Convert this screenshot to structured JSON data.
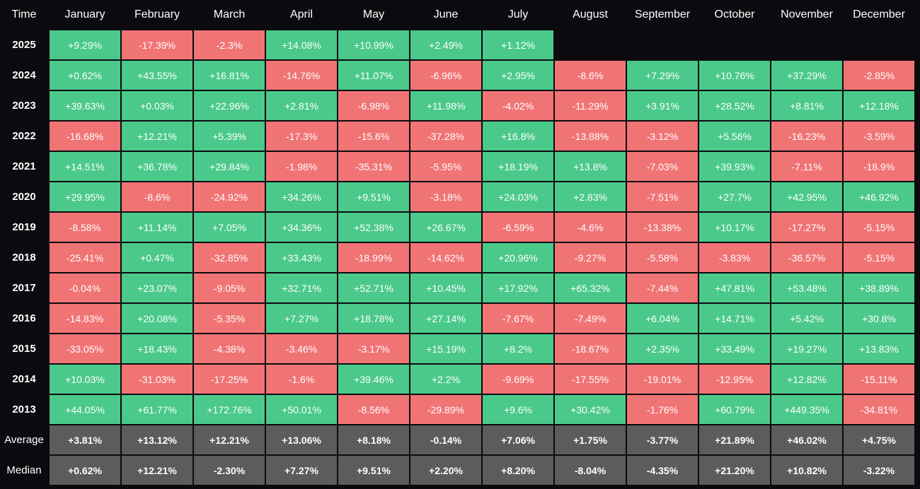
{
  "header": {
    "time_label": "Time",
    "months": [
      "January",
      "February",
      "March",
      "April",
      "May",
      "June",
      "July",
      "August",
      "September",
      "October",
      "November",
      "December"
    ]
  },
  "colors": {
    "positive": "#4bc98b",
    "negative": "#f17475",
    "summary": "#5c5c5c",
    "background": "#0b0b0f"
  },
  "chart_data": {
    "type": "table",
    "columns": [
      "January",
      "February",
      "March",
      "April",
      "May",
      "June",
      "July",
      "August",
      "September",
      "October",
      "November",
      "December"
    ],
    "rows": [
      {
        "label": "2025",
        "values": [
          "+9.29%",
          "-17.39%",
          "-2.3%",
          "+14.08%",
          "+10.99%",
          "+2.49%",
          "+1.12%",
          "",
          "",
          "",
          "",
          ""
        ]
      },
      {
        "label": "2024",
        "values": [
          "+0.62%",
          "+43.55%",
          "+16.81%",
          "-14.76%",
          "+11.07%",
          "-6.96%",
          "+2.95%",
          "-8.6%",
          "+7.29%",
          "+10.76%",
          "+37.29%",
          "-2.85%"
        ]
      },
      {
        "label": "2023",
        "values": [
          "+39.63%",
          "+0.03%",
          "+22.96%",
          "+2.81%",
          "-6.98%",
          "+11.98%",
          "-4.02%",
          "-11.29%",
          "+3.91%",
          "+28.52%",
          "+8.81%",
          "+12.18%"
        ]
      },
      {
        "label": "2022",
        "values": [
          "-16.68%",
          "+12.21%",
          "+5.39%",
          "-17.3%",
          "-15.6%",
          "-37.28%",
          "+16.8%",
          "-13.88%",
          "-3.12%",
          "+5.56%",
          "-16.23%",
          "-3.59%"
        ]
      },
      {
        "label": "2021",
        "values": [
          "+14.51%",
          "+36.78%",
          "+29.84%",
          "-1.98%",
          "-35.31%",
          "-5.95%",
          "+18.19%",
          "+13.8%",
          "-7.03%",
          "+39.93%",
          "-7.11%",
          "-18.9%"
        ]
      },
      {
        "label": "2020",
        "values": [
          "+29.95%",
          "-8.6%",
          "-24.92%",
          "+34.26%",
          "+9.51%",
          "-3.18%",
          "+24.03%",
          "+2.83%",
          "-7.51%",
          "+27.7%",
          "+42.95%",
          "+46.92%"
        ]
      },
      {
        "label": "2019",
        "values": [
          "-8.58%",
          "+11.14%",
          "+7.05%",
          "+34.36%",
          "+52.38%",
          "+26.67%",
          "-6.59%",
          "-4.6%",
          "-13.38%",
          "+10.17%",
          "-17.27%",
          "-5.15%"
        ]
      },
      {
        "label": "2018",
        "values": [
          "-25.41%",
          "+0.47%",
          "-32.85%",
          "+33.43%",
          "-18.99%",
          "-14.62%",
          "+20.96%",
          "-9.27%",
          "-5.58%",
          "-3.83%",
          "-36.57%",
          "-5.15%"
        ]
      },
      {
        "label": "2017",
        "values": [
          "-0.04%",
          "+23.07%",
          "-9.05%",
          "+32.71%",
          "+52.71%",
          "+10.45%",
          "+17.92%",
          "+65.32%",
          "-7.44%",
          "+47.81%",
          "+53.48%",
          "+38.89%"
        ]
      },
      {
        "label": "2016",
        "values": [
          "-14.83%",
          "+20.08%",
          "-5.35%",
          "+7.27%",
          "+18.78%",
          "+27.14%",
          "-7.67%",
          "-7.49%",
          "+6.04%",
          "+14.71%",
          "+5.42%",
          "+30.8%"
        ]
      },
      {
        "label": "2015",
        "values": [
          "-33.05%",
          "+18.43%",
          "-4.38%",
          "-3.46%",
          "-3.17%",
          "+15.19%",
          "+8.2%",
          "-18.67%",
          "+2.35%",
          "+33.49%",
          "+19.27%",
          "+13.83%"
        ]
      },
      {
        "label": "2014",
        "values": [
          "+10.03%",
          "-31.03%",
          "-17.25%",
          "-1.6%",
          "+39.46%",
          "+2.2%",
          "-9.69%",
          "-17.55%",
          "-19.01%",
          "-12.95%",
          "+12.82%",
          "-15.11%"
        ]
      },
      {
        "label": "2013",
        "values": [
          "+44.05%",
          "+61.77%",
          "+172.76%",
          "+50.01%",
          "-8.56%",
          "-29.89%",
          "+9.6%",
          "+30.42%",
          "-1.76%",
          "+60.79%",
          "+449.35%",
          "-34.81%"
        ]
      }
    ],
    "summary_rows": [
      {
        "label": "Average",
        "values": [
          "+3.81%",
          "+13.12%",
          "+12.21%",
          "+13.06%",
          "+8.18%",
          "-0.14%",
          "+7.06%",
          "+1.75%",
          "-3.77%",
          "+21.89%",
          "+46.02%",
          "+4.75%"
        ]
      },
      {
        "label": "Median",
        "values": [
          "+0.62%",
          "+12.21%",
          "-2.30%",
          "+7.27%",
          "+9.51%",
          "+2.20%",
          "+8.20%",
          "-8.04%",
          "-4.35%",
          "+21.20%",
          "+10.82%",
          "-3.22%"
        ]
      }
    ]
  }
}
